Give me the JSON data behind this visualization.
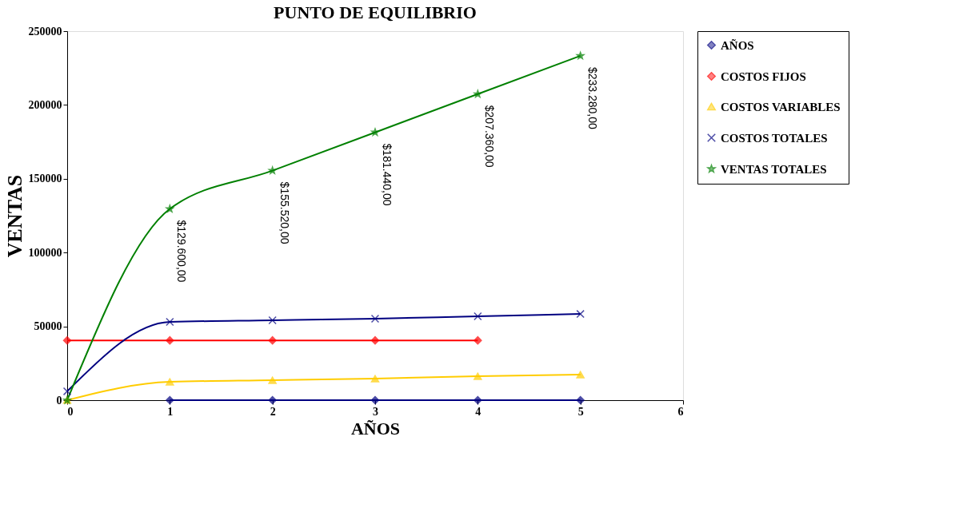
{
  "chart_data": {
    "type": "line",
    "title": "PUNTO DE EQUILIBRIO",
    "xlabel": "AÑOS",
    "ylabel": "VENTAS",
    "xlim": [
      0,
      6
    ],
    "xticks": [
      0,
      1,
      2,
      3,
      4,
      5,
      6
    ],
    "ylim": [
      0,
      250000
    ],
    "yticks": [
      0,
      50000,
      100000,
      150000,
      200000,
      250000
    ],
    "grid": false,
    "legend": "right",
    "series": [
      {
        "name": "AÑOS",
        "color": "#000080",
        "marker": "diamond",
        "x": [
          1,
          2,
          3,
          4,
          5
        ],
        "values": [
          0,
          0,
          0,
          0,
          0
        ]
      },
      {
        "name": "COSTOS FIJOS",
        "color": "#ff0000",
        "marker": "diamond",
        "x": [
          0,
          1,
          2,
          3,
          4
        ],
        "values": [
          40500,
          40500,
          40500,
          40500,
          40500
        ]
      },
      {
        "name": "COSTOS VARIABLES",
        "color": "#ffcc00",
        "marker": "triangle",
        "x": [
          0,
          1,
          2,
          3,
          4,
          5
        ],
        "values": [
          0,
          12400,
          13500,
          14600,
          16200,
          17300
        ]
      },
      {
        "name": "COSTOS TOTALES",
        "color": "#000080",
        "marker": "cross",
        "x": [
          0,
          1,
          2,
          3,
          4,
          5
        ],
        "values": [
          6000,
          53000,
          54100,
          55200,
          56800,
          58400
        ]
      },
      {
        "name": "VENTAS TOTALES",
        "color": "#008000",
        "marker": "star",
        "x": [
          0,
          1,
          2,
          3,
          4,
          5
        ],
        "values": [
          0,
          129600,
          155520,
          181440,
          207360,
          233280
        ],
        "value_labels": [
          null,
          "$129.600,00",
          "$155.520,00",
          "$181.440,00",
          "$207.360,00",
          "$233.280,00"
        ]
      }
    ]
  }
}
